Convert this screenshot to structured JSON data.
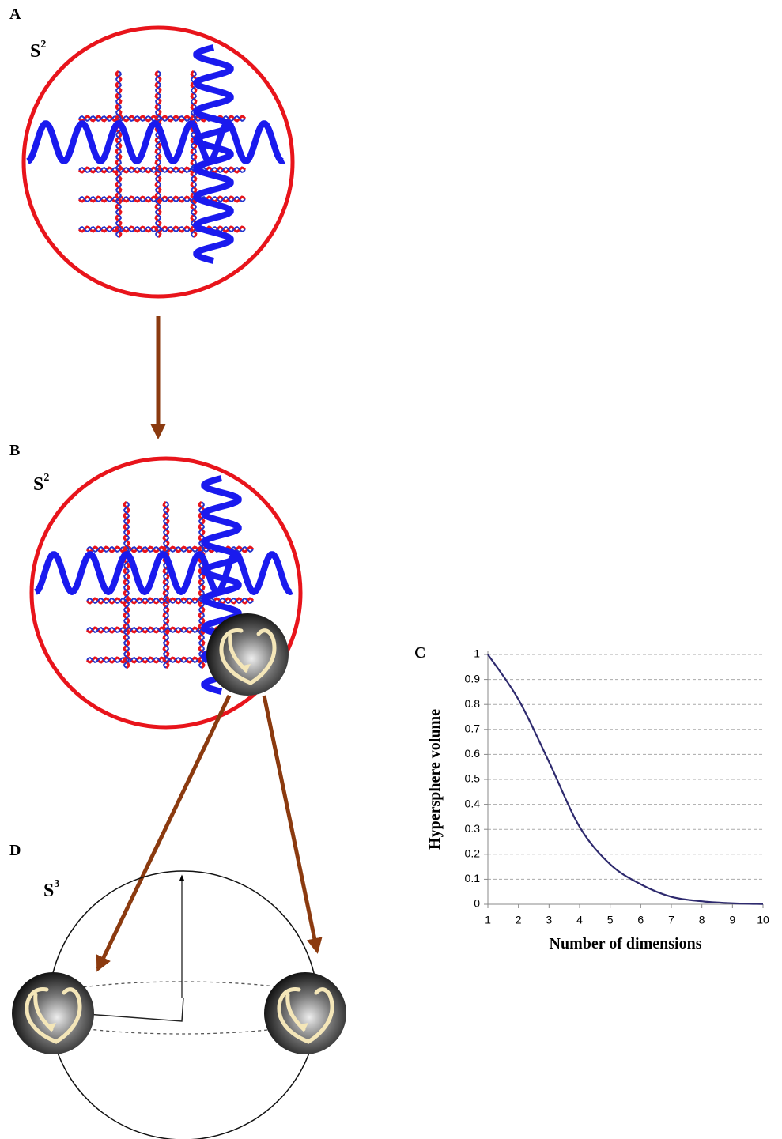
{
  "panels": [
    {
      "label": "A",
      "sphere": "S",
      "dimension": "2"
    },
    {
      "label": "B",
      "sphere": "S",
      "dimension": "2"
    },
    {
      "label": "D",
      "sphere": "S",
      "dimension": "3"
    }
  ],
  "chart_data": {
    "type": "line",
    "label": "C",
    "x_label": "Number of dimensions",
    "y_label": "Hypersphere volume",
    "x": [
      1,
      2,
      3,
      4,
      5,
      6,
      7,
      8,
      9,
      10
    ],
    "values": [
      1,
      0.82,
      0.57,
      0.31,
      0.16,
      0.08,
      0.03,
      0.012,
      0.004,
      0.001
    ],
    "color": "#2e2a6e",
    "xlim": [
      1,
      10
    ],
    "ylim": [
      0,
      1
    ],
    "xticks": [
      1,
      2,
      3,
      4,
      5,
      6,
      7,
      8,
      9,
      10
    ],
    "yticks": [
      0,
      0.1,
      0.2,
      0.3,
      0.4,
      0.5,
      0.6,
      0.7,
      0.8,
      0.9,
      1
    ],
    "grid": true
  }
}
